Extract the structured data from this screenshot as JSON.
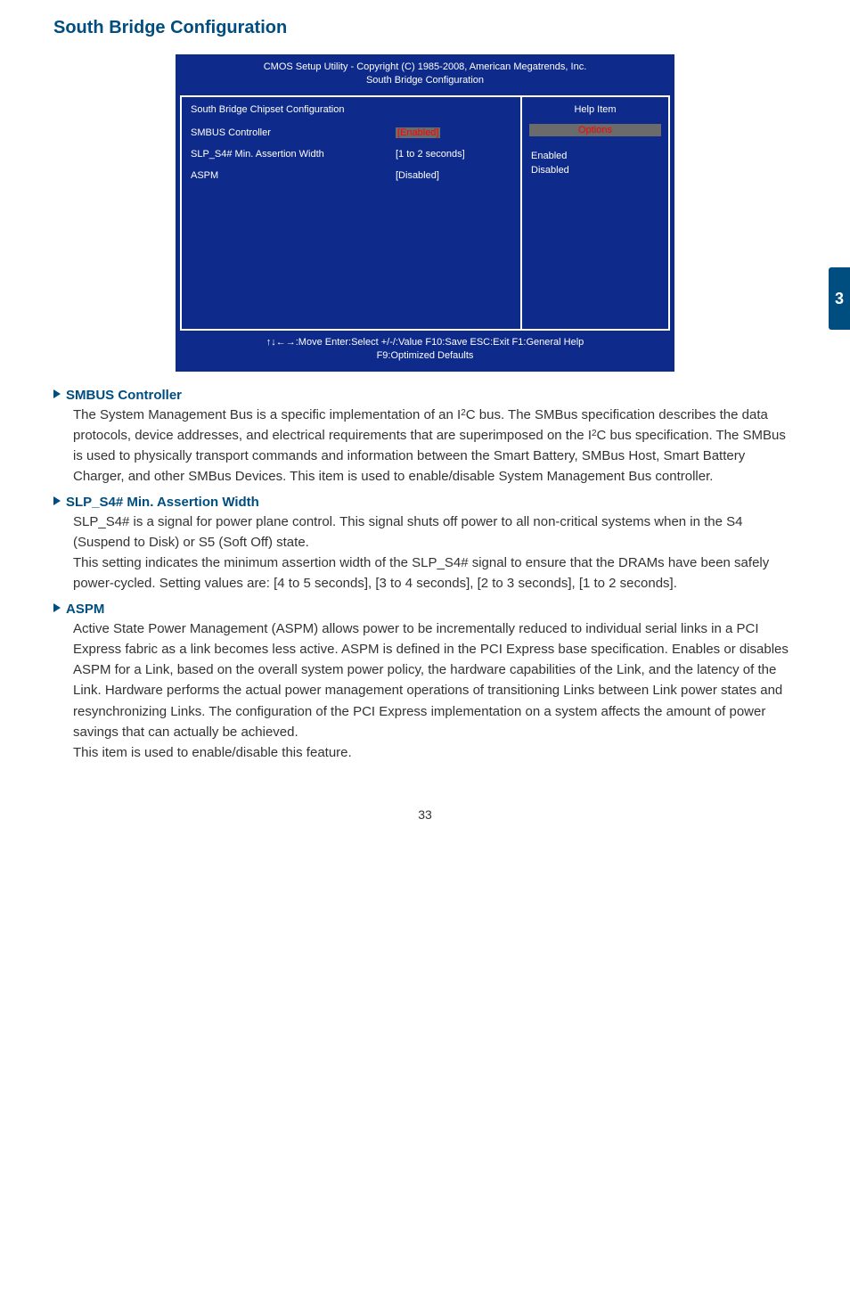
{
  "page": {
    "section_title": "South Bridge Configuration",
    "side_tab": "3",
    "page_number": "33"
  },
  "bios": {
    "header_line1": "CMOS Setup Utility - Copyright (C) 1985-2008, American Megatrends, Inc.",
    "header_line2": "South Bridge Configuration",
    "left_subheader": "South Bridge Chipset Configuration",
    "right_subheader": "Help Item",
    "options_label": "Options",
    "rows": [
      {
        "label": "SMBUS Controller",
        "value": "[Enabled]",
        "selected": true
      },
      {
        "label": "SLP_S4# Min. Assertion Width",
        "value": "[1 to 2 seconds]",
        "selected": false
      },
      {
        "label": "ASPM",
        "value": "[Disabled]",
        "selected": false
      }
    ],
    "right_options": [
      "Enabled",
      "Disabled"
    ],
    "footer_line1": "↑↓←→:Move   Enter:Select     +/-/:Value     F10:Save      ESC:Exit     F1:General Help",
    "footer_line2": "F9:Optimized Defaults"
  },
  "items": {
    "smbus": {
      "title": "SMBUS Controller",
      "text": "The System Management Bus is a specific implementation of an I2C bus. The SMBus specification describes the data protocols, device addresses, and electrical requirements that are superimposed on the I2C bus specification. The SMBus is used to physically transport commands and information between the Smart Battery, SMBus Host, Smart Battery Charger, and other SMBus Devices. This item is used to enable/disable System Management Bus controller."
    },
    "slp": {
      "title": "SLP_S4# Min. Assertion Width",
      "text1": "SLP_S4# is a signal for power plane control. This signal shuts off power to all non-critical systems when in the S4 (Suspend to Disk) or S5 (Soft Off) state.",
      "text2": "This setting indicates the minimum assertion width of the SLP_S4# signal to ensure that the DRAMs have been safely power-cycled. Setting values are: [4 to 5 seconds],  [3 to 4 seconds],  [2 to 3 seconds],  [1 to 2 seconds]."
    },
    "aspm": {
      "title": "ASPM",
      "text1": "Active State Power Management (ASPM) allows power to be incrementally reduced to individual serial links in a PCI Express fabric as a link becomes less active. ASPM is defined in the PCI Express base specification. Enables or disables ASPM for a Link, based on the overall system power policy, the hardware capabilities of the Link, and the latency of the Link. Hardware performs the actual power management operations of transitioning Links between Link power states and resynchronizing Links. The configuration of the PCI Express implementation on a system affects the amount of power savings that can actually be achieved.",
      "text2": "This item is used to enable/disable this feature."
    }
  }
}
